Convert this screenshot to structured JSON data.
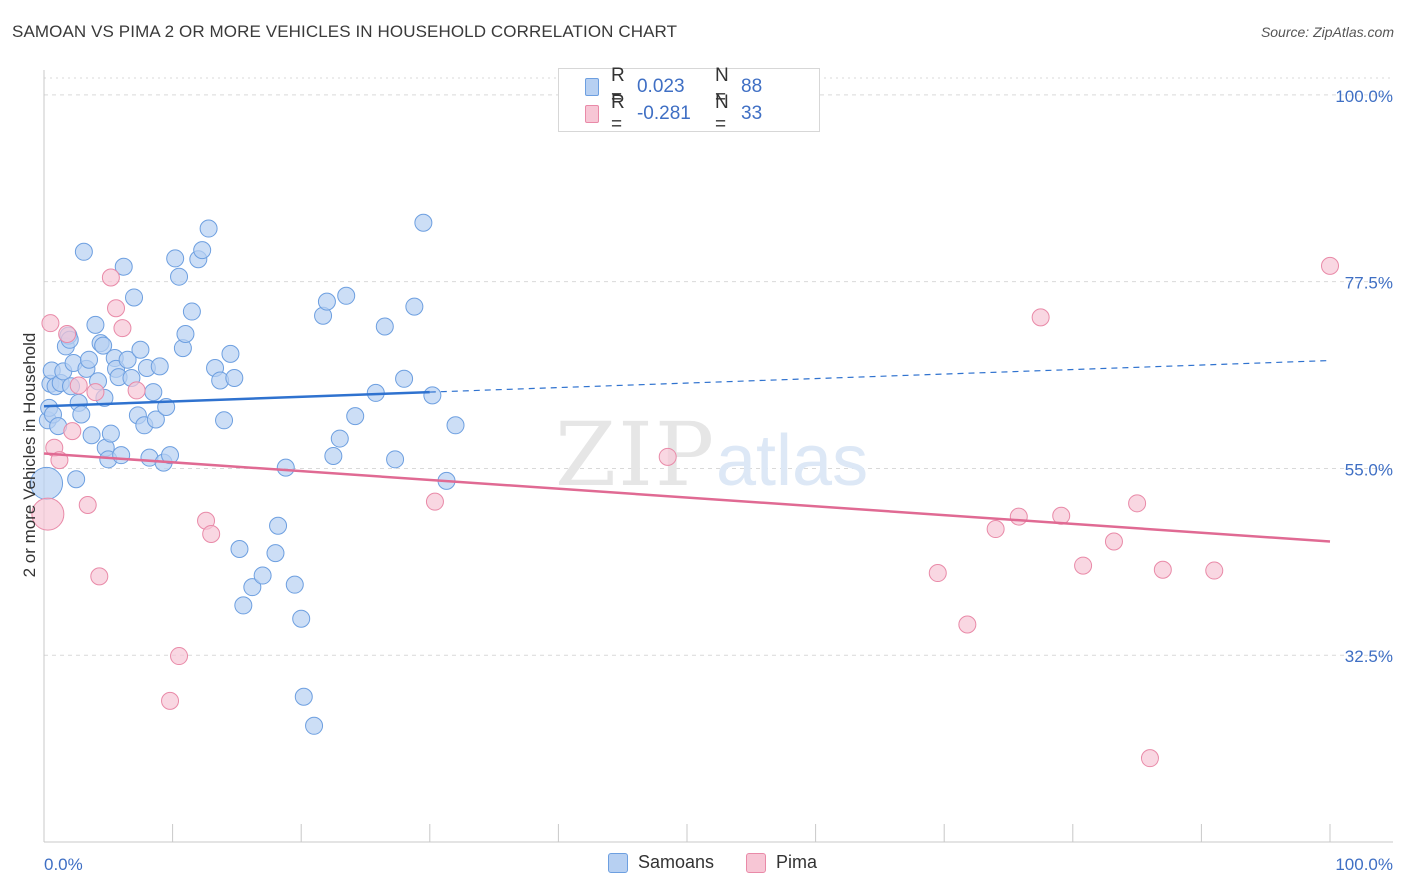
{
  "header": {
    "title": "SAMOAN VS PIMA 2 OR MORE VEHICLES IN HOUSEHOLD CORRELATION CHART",
    "source": "Source: ZipAtlas.com"
  },
  "legend": {
    "r_label": "R =",
    "n_label": "N =",
    "series": [
      {
        "name": "Samoans",
        "r": "0.023",
        "n": "88"
      },
      {
        "name": "Pima",
        "r": "-0.281",
        "n": "33"
      }
    ]
  },
  "watermark": {
    "zip": "ZIP",
    "atlas": "atlas"
  },
  "colors": {
    "samoans_fill": "#b7d0f2",
    "samoans_stroke": "#6d9fe0",
    "samoans_line": "#2f72cf",
    "pima_fill": "#f7c6d5",
    "pima_stroke": "#e98aa8",
    "pima_line": "#e06a93",
    "tick_text": "#3f6fc4",
    "grid": "#d9d9d9"
  },
  "chart_data": {
    "type": "scatter",
    "title": "SAMOAN VS PIMA 2 OR MORE VEHICLES IN HOUSEHOLD CORRELATION CHART",
    "xlabel": "",
    "ylabel": "2 or more Vehicles in Household",
    "xlim": [
      0,
      100
    ],
    "ylim": [
      10,
      103
    ],
    "x_tick_labels": [
      "0.0%",
      "100.0%"
    ],
    "y_ticks": [
      32.5,
      55.0,
      77.5,
      100.0
    ],
    "y_tick_labels": [
      "32.5%",
      "55.0%",
      "77.5%",
      "100.0%"
    ],
    "grid": true,
    "series": [
      {
        "name": "Samoans",
        "trend": {
          "x0": 0,
          "y0": 62.5,
          "x1": 30,
          "y1": 64.2,
          "dash_to_x": 100,
          "dash_to_y": 68.0
        },
        "points": [
          [
            0.2,
            53.2
          ],
          [
            0.3,
            60.8
          ],
          [
            0.4,
            62.3
          ],
          [
            0.5,
            65.2
          ],
          [
            0.6,
            66.8
          ],
          [
            0.7,
            61.5
          ],
          [
            0.9,
            64.9
          ],
          [
            1.1,
            60.1
          ],
          [
            1.3,
            65.3
          ],
          [
            1.5,
            66.7
          ],
          [
            1.7,
            69.7
          ],
          [
            1.9,
            71.0
          ],
          [
            2.0,
            70.5
          ],
          [
            2.1,
            64.9
          ],
          [
            2.3,
            67.7
          ],
          [
            2.5,
            53.7
          ],
          [
            2.7,
            62.9
          ],
          [
            2.9,
            61.5
          ],
          [
            3.1,
            81.1
          ],
          [
            3.3,
            67.0
          ],
          [
            3.5,
            68.1
          ],
          [
            3.7,
            59.0
          ],
          [
            4.0,
            72.3
          ],
          [
            4.2,
            65.5
          ],
          [
            4.4,
            70.1
          ],
          [
            4.6,
            69.8
          ],
          [
            4.7,
            63.5
          ],
          [
            4.8,
            57.5
          ],
          [
            5.0,
            56.1
          ],
          [
            5.2,
            59.2
          ],
          [
            5.5,
            68.3
          ],
          [
            5.6,
            67.0
          ],
          [
            5.8,
            66.0
          ],
          [
            6.0,
            56.6
          ],
          [
            6.2,
            79.3
          ],
          [
            6.5,
            68.1
          ],
          [
            6.8,
            65.9
          ],
          [
            7.0,
            75.6
          ],
          [
            7.3,
            61.4
          ],
          [
            7.5,
            69.3
          ],
          [
            7.8,
            60.2
          ],
          [
            8.0,
            67.1
          ],
          [
            8.2,
            56.3
          ],
          [
            8.5,
            64.2
          ],
          [
            8.7,
            60.9
          ],
          [
            9.0,
            67.3
          ],
          [
            9.3,
            55.7
          ],
          [
            9.5,
            62.4
          ],
          [
            9.8,
            56.6
          ],
          [
            10.2,
            80.3
          ],
          [
            10.5,
            78.1
          ],
          [
            10.8,
            69.5
          ],
          [
            11.0,
            71.2
          ],
          [
            11.5,
            73.9
          ],
          [
            12.0,
            80.2
          ],
          [
            12.3,
            81.3
          ],
          [
            12.8,
            83.9
          ],
          [
            13.3,
            67.1
          ],
          [
            13.7,
            65.6
          ],
          [
            14.0,
            60.8
          ],
          [
            14.5,
            68.8
          ],
          [
            14.8,
            65.9
          ],
          [
            15.2,
            45.3
          ],
          [
            15.5,
            38.5
          ],
          [
            16.2,
            40.7
          ],
          [
            17.0,
            42.1
          ],
          [
            18.0,
            44.8
          ],
          [
            18.2,
            48.1
          ],
          [
            18.8,
            55.1
          ],
          [
            19.5,
            41.0
          ],
          [
            20.0,
            36.9
          ],
          [
            20.2,
            27.5
          ],
          [
            21.0,
            24.0
          ],
          [
            21.7,
            73.4
          ],
          [
            22.0,
            75.1
          ],
          [
            22.5,
            56.5
          ],
          [
            23.0,
            58.6
          ],
          [
            23.5,
            75.8
          ],
          [
            24.2,
            61.3
          ],
          [
            25.8,
            64.1
          ],
          [
            26.5,
            72.1
          ],
          [
            27.3,
            56.1
          ],
          [
            28.0,
            65.8
          ],
          [
            28.8,
            74.5
          ],
          [
            29.5,
            84.6
          ],
          [
            30.2,
            63.8
          ],
          [
            31.3,
            53.5
          ],
          [
            32.0,
            60.2
          ]
        ]
      },
      {
        "name": "Pima",
        "trend": {
          "x0": 0,
          "y0": 56.8,
          "x1": 100,
          "y1": 46.2
        },
        "points": [
          [
            0.3,
            49.5
          ],
          [
            0.8,
            57.5
          ],
          [
            1.2,
            56.0
          ],
          [
            1.8,
            71.2
          ],
          [
            2.2,
            59.5
          ],
          [
            2.7,
            65.0
          ],
          [
            3.4,
            50.6
          ],
          [
            4.0,
            64.2
          ],
          [
            4.3,
            42.0
          ],
          [
            5.2,
            78.0
          ],
          [
            5.6,
            74.3
          ],
          [
            6.1,
            71.9
          ],
          [
            7.2,
            64.4
          ],
          [
            9.8,
            27.0
          ],
          [
            10.5,
            32.4
          ],
          [
            12.6,
            48.7
          ],
          [
            13.0,
            47.1
          ],
          [
            30.4,
            51.0
          ],
          [
            48.5,
            56.4
          ],
          [
            69.5,
            42.4
          ],
          [
            71.8,
            36.2
          ],
          [
            74.0,
            47.7
          ],
          [
            75.8,
            49.2
          ],
          [
            77.5,
            73.2
          ],
          [
            79.1,
            49.3
          ],
          [
            80.8,
            43.3
          ],
          [
            83.2,
            46.2
          ],
          [
            85.0,
            50.8
          ],
          [
            86.0,
            20.1
          ],
          [
            87.0,
            42.8
          ],
          [
            91.0,
            42.7
          ],
          [
            100.0,
            79.4
          ],
          [
            0.5,
            72.5
          ]
        ]
      }
    ]
  }
}
